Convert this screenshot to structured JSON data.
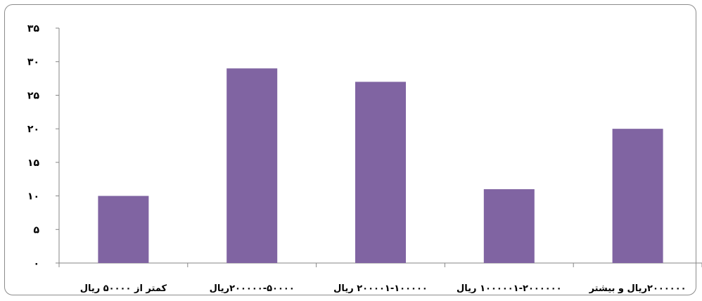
{
  "chart_data": {
    "type": "bar",
    "categories": [
      "کمتر از ۵۰۰۰۰ ریال",
      "۲۰۰۰۰۰-۵۰۰۰۰ریال",
      "۲۰۰۰۰۱-۱۰۰۰۰۰ ریال",
      "۱۰۰۰۰۰۱-۲۰۰۰۰۰۰ ریال",
      "۲۰۰۰۰۰۰ریال و بیشتر"
    ],
    "values": [
      10,
      29,
      27,
      11,
      20
    ],
    "ylim": [
      0,
      35
    ],
    "yticks": [
      0,
      5,
      10,
      15,
      20,
      25,
      30,
      35
    ],
    "ytick_labels": [
      "۰",
      "۵",
      "۱۰",
      "۱۵",
      "۲۰",
      "۲۵",
      "۳۰",
      "۳۵"
    ],
    "bar_color": "#8064a2",
    "axis_color": "#868686",
    "grid": false,
    "legend": "none",
    "title": "",
    "xlabel": "",
    "ylabel": ""
  }
}
